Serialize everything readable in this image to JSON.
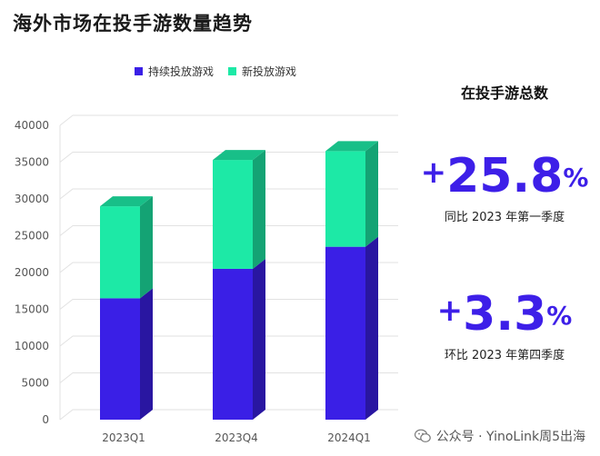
{
  "page_title": "海外市场在投手游数量趋势",
  "colors": {
    "series_continuing": "#3a1fe6",
    "series_new": "#1de9a6",
    "accent": "#3d1fe8"
  },
  "stats": {
    "title": "在投手游总数",
    "yoy": {
      "sign": "+",
      "number": "25.8",
      "percent": "%",
      "caption": "同比 2023 年第一季度"
    },
    "qoq": {
      "sign": "+",
      "number": "3.3",
      "percent": "%",
      "caption": "环比 2023 年第四季度"
    }
  },
  "watermark": {
    "icon": "wechat-icon",
    "text": "公众号 · YinoLink周5出海"
  },
  "chart_data": {
    "type": "bar",
    "stacked": true,
    "categories": [
      "2023Q1",
      "2023Q4",
      "2024Q1"
    ],
    "series": [
      {
        "name": "持续投放游戏",
        "values": [
          16500,
          20500,
          23500
        ]
      },
      {
        "name": "新投放游戏",
        "values": [
          12500,
          14800,
          13000
        ]
      }
    ],
    "ylim": [
      0,
      40000
    ],
    "yticks": [
      0,
      5000,
      10000,
      15000,
      20000,
      25000,
      30000,
      35000,
      40000
    ],
    "grid": true,
    "legend_position": "top-left"
  }
}
